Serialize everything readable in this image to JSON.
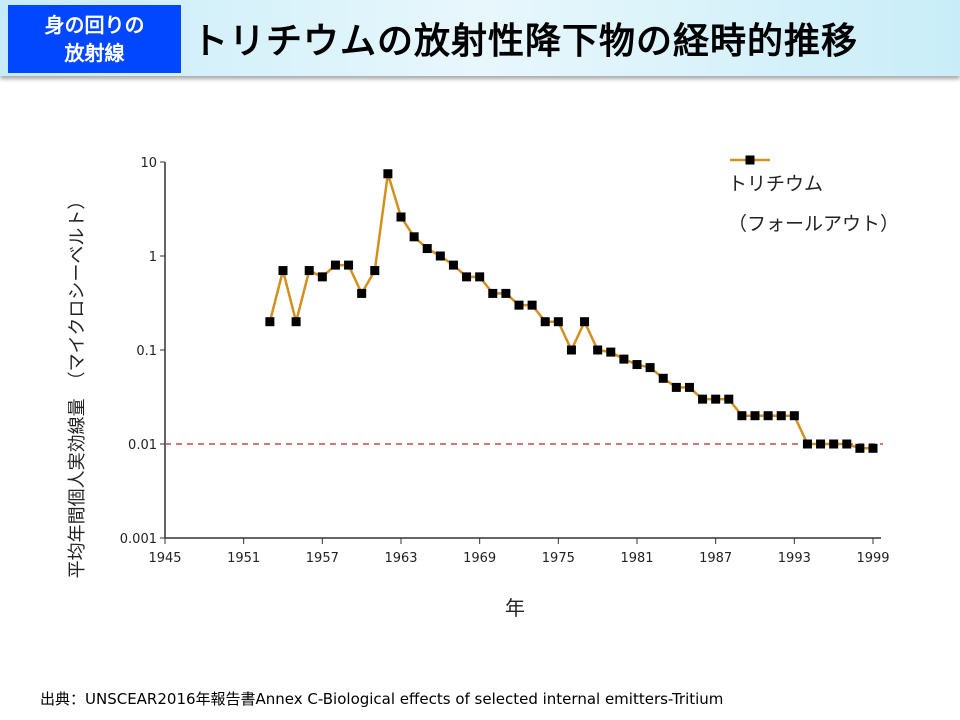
{
  "header": {
    "badge_line1": "身の回りの",
    "badge_line2": "放射線",
    "title": "トリチウムの放射性降下物の経時的推移"
  },
  "source": "出典：UNSCEAR2016年報告書Annex C-Biological effects of selected internal emitters-Tritium",
  "chart_data": {
    "type": "line",
    "title": "",
    "xlabel": "年",
    "ylabel": "平均年間個人実効線量　（マイクロシーベルト）",
    "y_scale": "log",
    "ylim": [
      0.001,
      10
    ],
    "xlim": [
      1945,
      1999
    ],
    "x_ticks": [
      "1945",
      "1951",
      "1957",
      "1963",
      "1969",
      "1975",
      "1981",
      "1987",
      "1993",
      "1999"
    ],
    "y_ticks": [
      "10",
      "1",
      "0.1",
      "0.01",
      "0.001"
    ],
    "reference_line": {
      "y": 0.01,
      "style": "dashed",
      "color": "#c0504d"
    },
    "legend": {
      "placement": "top-right",
      "line1": "トリチウム",
      "line2": "（フォールアウト）"
    },
    "series": [
      {
        "name": "トリチウム（フォールアウト）",
        "color": "#d4901e",
        "marker": "square",
        "x": [
          1953,
          1954,
          1955,
          1956,
          1957,
          1958,
          1959,
          1960,
          1961,
          1962,
          1963,
          1964,
          1965,
          1966,
          1967,
          1968,
          1969,
          1970,
          1971,
          1972,
          1973,
          1974,
          1975,
          1976,
          1977,
          1978,
          1979,
          1980,
          1981,
          1982,
          1983,
          1984,
          1985,
          1986,
          1987,
          1988,
          1989,
          1990,
          1991,
          1992,
          1993,
          1994,
          1995,
          1996,
          1997,
          1998,
          1999
        ],
        "y": [
          0.2,
          0.7,
          0.2,
          0.7,
          0.6,
          0.8,
          0.8,
          0.4,
          0.7,
          7.5,
          2.6,
          1.6,
          1.2,
          1.0,
          0.8,
          0.6,
          0.6,
          0.4,
          0.4,
          0.3,
          0.3,
          0.2,
          0.2,
          0.1,
          0.2,
          0.1,
          0.095,
          0.08,
          0.07,
          0.065,
          0.05,
          0.04,
          0.04,
          0.03,
          0.03,
          0.03,
          0.02,
          0.02,
          0.02,
          0.02,
          0.02,
          0.01,
          0.01,
          0.01,
          0.01,
          0.009,
          0.009
        ]
      }
    ]
  }
}
